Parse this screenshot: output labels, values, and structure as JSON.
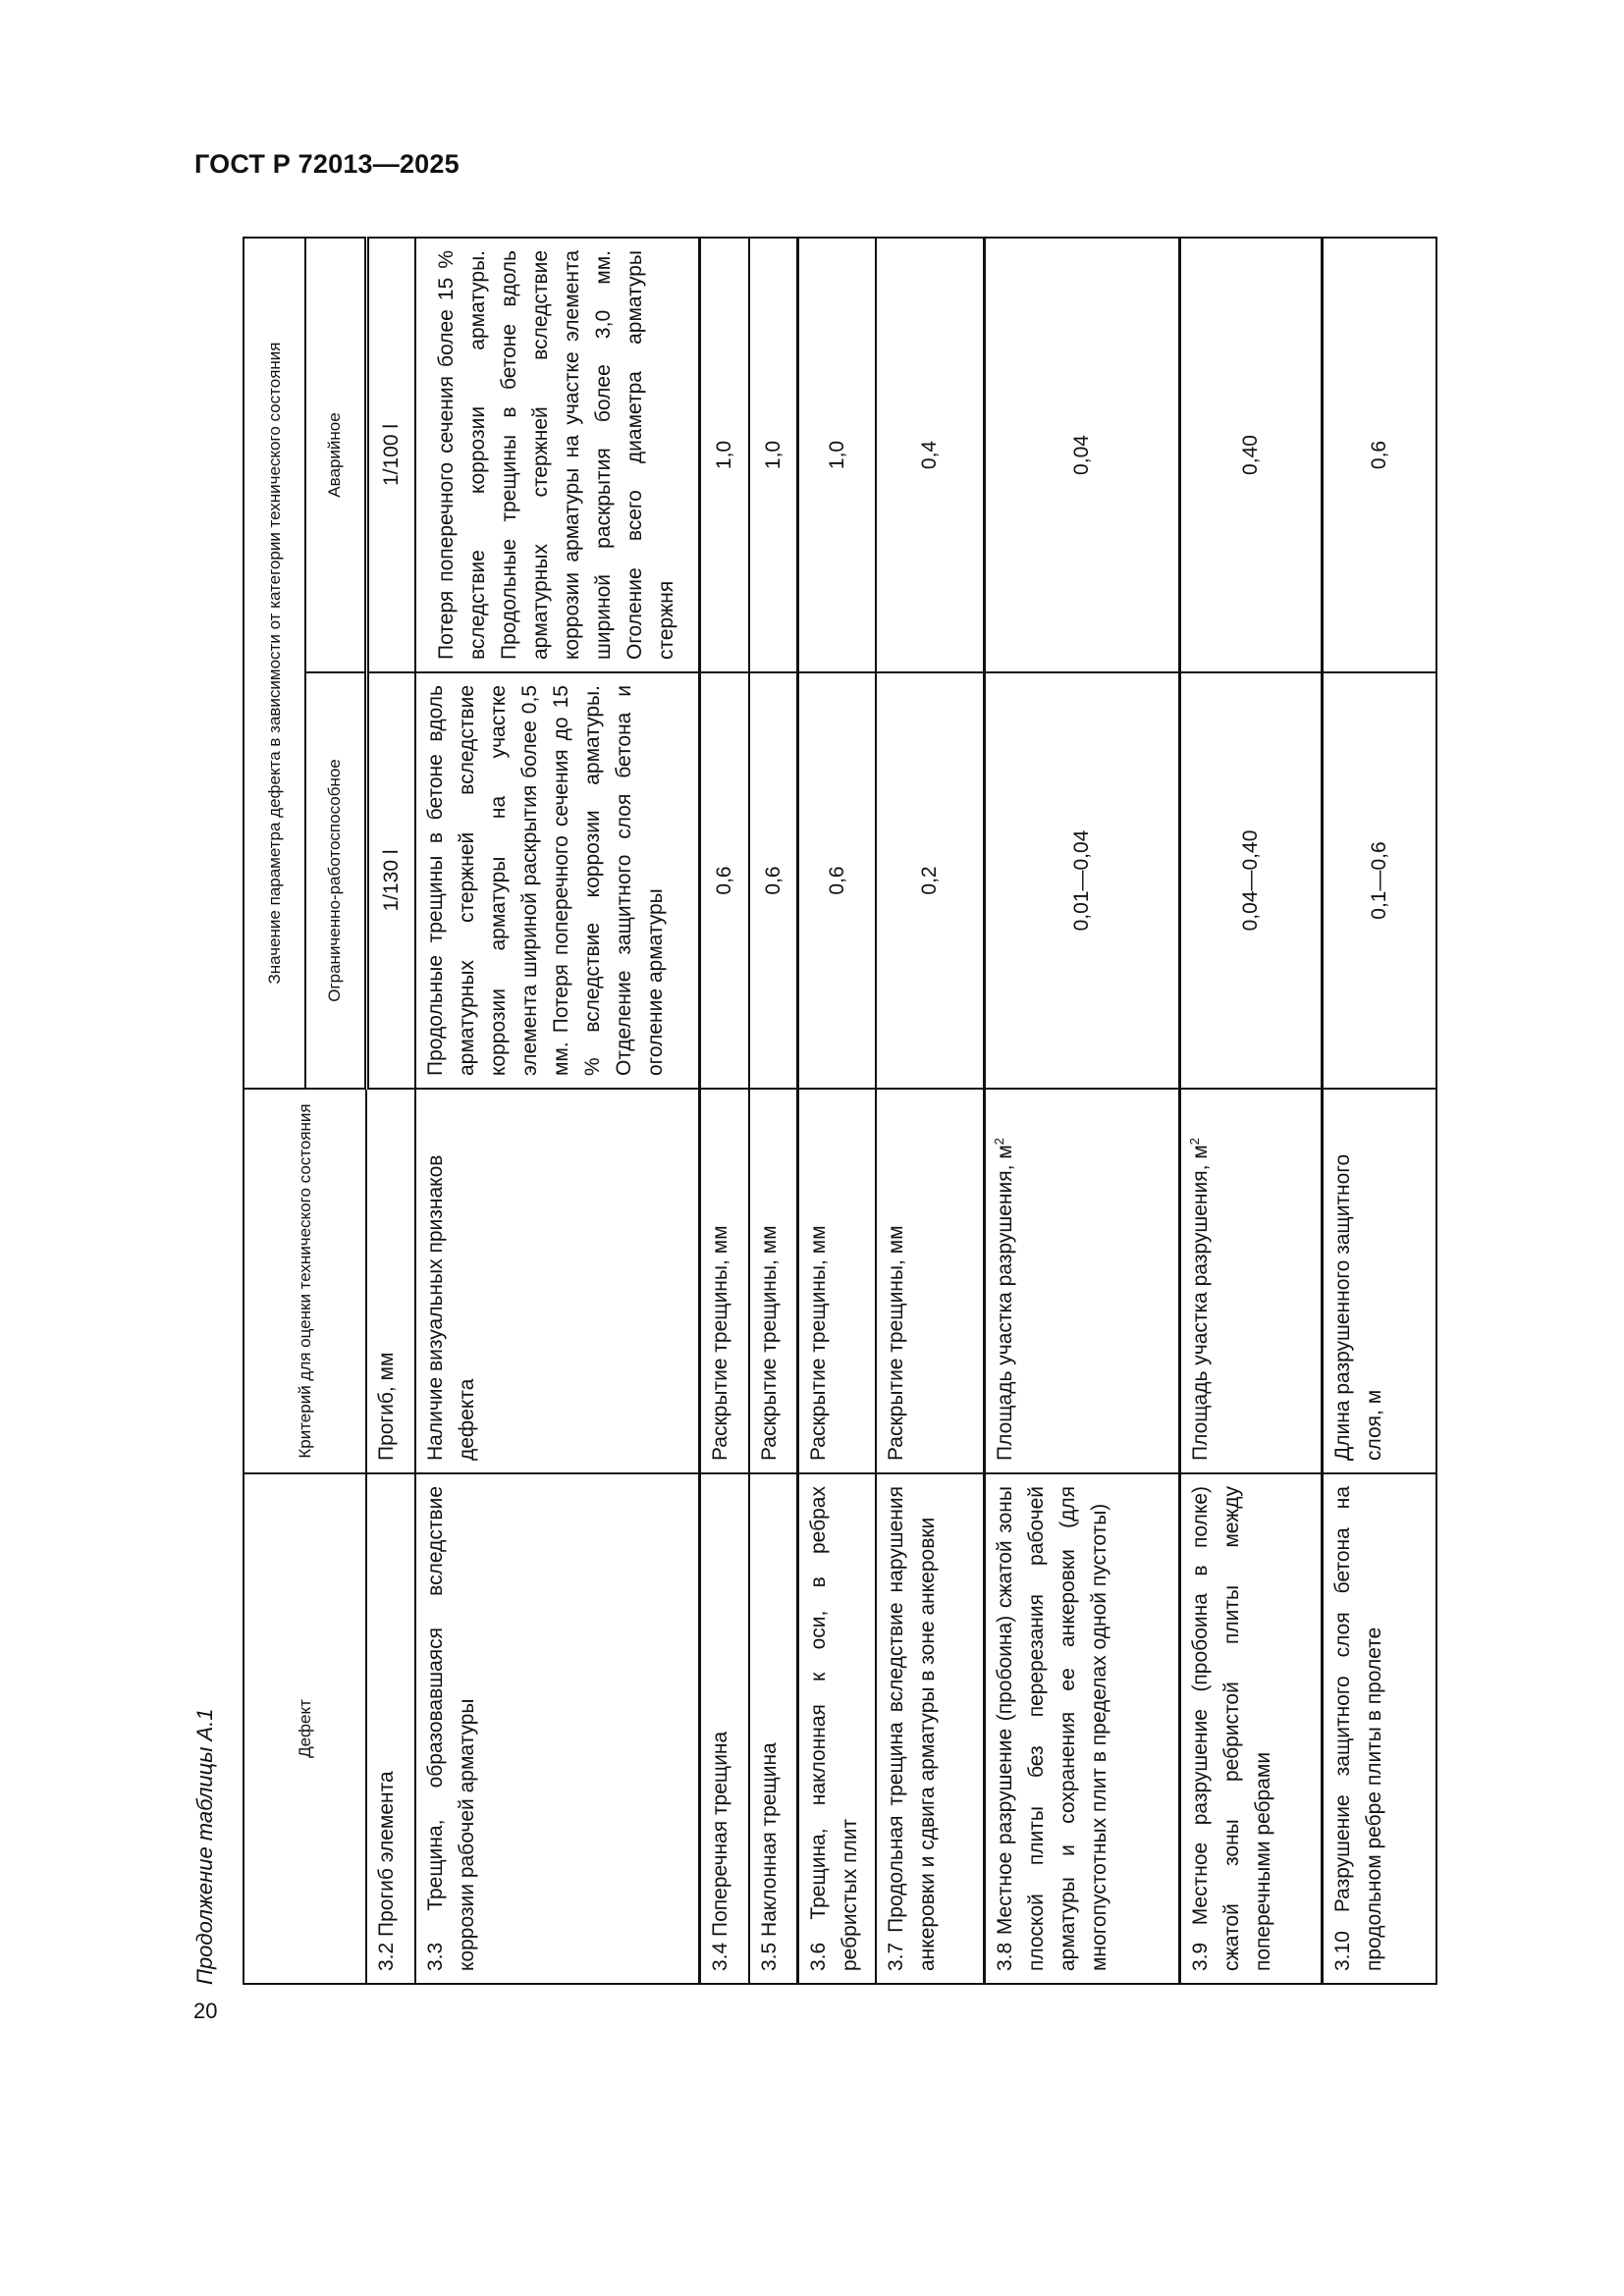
{
  "header": {
    "doc_code": "ГОСТ Р 72013—2025",
    "page_number": "20"
  },
  "caption": "Продолжение таблицы А.1",
  "table": {
    "columns": {
      "defect": "Дефект",
      "criterion": "Критерий для оценки технического состояния",
      "value_group": "Значение параметра дефекта в зависимости от категории технического состояния",
      "limited": "Ограниченно-работоспособное",
      "emergency": "Аварийное"
    },
    "rows": [
      {
        "defect": "3.2 Прогиб элемента",
        "criterion": "Прогиб, мм",
        "limited": "1/130 l",
        "emergency": "1/100 l"
      },
      {
        "defect": "3.3 Трещина, образовавшаяся вследствие коррозии рабочей арматуры",
        "criterion": "Наличие визуальных признаков дефекта",
        "limited": "Продольные трещины в бетоне вдоль арматурных стержней вследствие коррозии арматуры на участке элемента шириной раскрытия более 0,5 мм. Потеря поперечного сечения до 15 % вследствие коррозии арматуры. Отделение защитного слоя бетона и оголение арматуры",
        "emergency": "Потеря поперечного сечения более 15 % вследствие коррозии арматуры. Продольные трещины в бетоне вдоль арматурных стержней вследствие коррозии арматуры на участке элемента шириной раскрытия более 3,0 мм. Оголение всего диаметра арматуры стержня"
      },
      {
        "defect": "3.4 Поперечная трещина",
        "criterion": "Раскрытие трещины, мм",
        "limited": "0,6",
        "emergency": "1,0"
      },
      {
        "defect": "3.5 Наклонная трещина",
        "criterion": "Раскрытие трещины, мм",
        "limited": "0,6",
        "emergency": "1,0"
      },
      {
        "defect": "3.6 Трещина, наклонная к оси, в ребрах ребристых плит",
        "criterion": "Раскрытие трещины, мм",
        "limited": "0,6",
        "emergency": "1,0"
      },
      {
        "defect": "3.7 Продольная трещина вследствие нарушения анкеровки и сдвига арматуры в зоне анкеровки",
        "criterion": "Раскрытие трещины, мм",
        "limited": "0,2",
        "emergency": "0,4"
      },
      {
        "defect": "3.8 Местное разрушение (пробоина) сжатой зоны плоской плиты без перерезания рабочей арматуры и сохранения ее анкеровки (для многопустотных плит в пределах одной пустоты)",
        "criterion": "Площадь участка разрушения, м",
        "criterion_sup": "2",
        "limited": "0,01—0,04",
        "emergency": "0,04"
      },
      {
        "defect": "3.9 Местное разрушение (пробоина в полке) сжатой зоны ребристой плиты между поперечными ребрами",
        "criterion": "Площадь участка разрушения, м",
        "criterion_sup": "2",
        "limited": "0,04—0,40",
        "emergency": "0,40"
      },
      {
        "defect": "3.10 Разрушение защитного слоя бетона на продольном ребре плиты в пролете",
        "criterion": "Длина разрушенного защитного слоя, м",
        "limited": "0,1—0,6",
        "emergency": "0,6"
      }
    ]
  }
}
